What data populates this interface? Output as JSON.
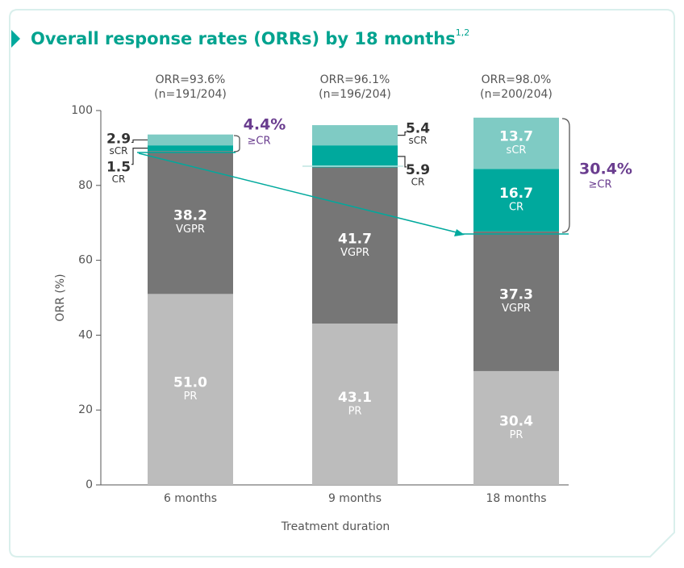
{
  "chart_data": {
    "type": "stacked_bar",
    "title": "Overall response rates (ORRs) by 18 months",
    "title_superscript": "1,2",
    "y_label": "ORR (%)",
    "x_label": "Treatment duration",
    "categories": [
      "6 months",
      "9 months",
      "18 months"
    ],
    "series": [
      {
        "name": "PR",
        "color": "#bcbcbc",
        "values": [
          51.0,
          43.1,
          30.4
        ],
        "value_labels": [
          "51.0",
          "43.1",
          "30.4"
        ]
      },
      {
        "name": "VGPR",
        "color": "#767676",
        "values": [
          38.2,
          41.7,
          37.3
        ]
      },
      {
        "name": "CR",
        "color": "#00a99d",
        "values": [
          1.5,
          5.9,
          16.7
        ]
      },
      {
        "name": "sCR",
        "color": "#7fcbc4",
        "values": [
          2.9,
          5.4,
          13.7
        ]
      }
    ],
    "bar_annotations": [
      {
        "orr": "ORR=93.6%",
        "n": "(n=191/204)"
      },
      {
        "orr": "ORR=96.1%",
        "n": "(n=196/204)"
      },
      {
        "orr": "ORR=98.0%",
        "n": "(n=200/204)"
      }
    ],
    "cr_totals": [
      {
        "value": "4.4%",
        "label": "≥CR"
      },
      {
        "value": "30.4%",
        "label": "≥CR"
      }
    ],
    "ylim": [
      0,
      100
    ],
    "yticks": [
      0,
      20,
      40,
      60,
      80,
      100
    ]
  }
}
